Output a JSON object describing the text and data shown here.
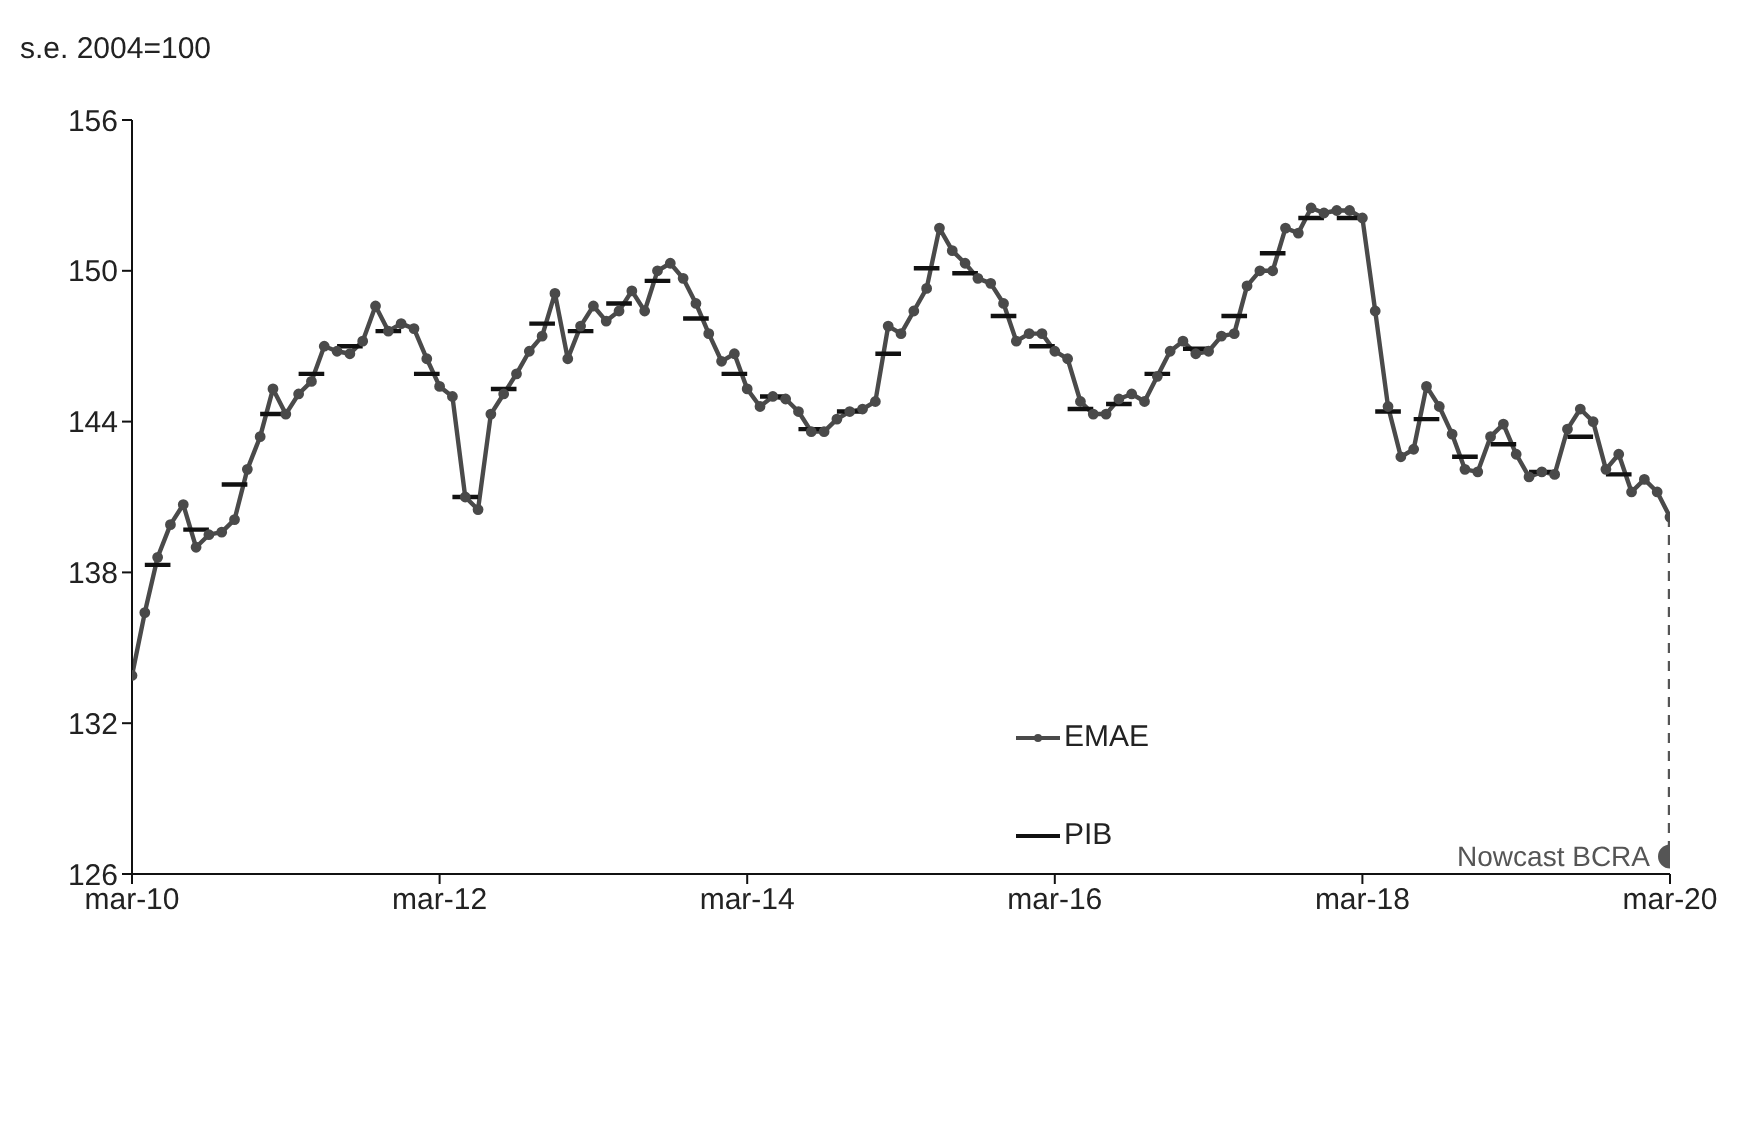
{
  "chart_data": {
    "type": "line",
    "ylabel": "s.e. 2004=100",
    "ylim": [
      126,
      156
    ],
    "yticks": [
      126,
      132,
      138,
      144,
      150,
      156
    ],
    "xlim": [
      "2010-03",
      "2020-03"
    ],
    "xticks": [
      {
        "value": "2010-03",
        "label": "mar-10"
      },
      {
        "value": "2012-03",
        "label": "mar-12"
      },
      {
        "value": "2014-03",
        "label": "mar-14"
      },
      {
        "value": "2016-03",
        "label": "mar-16"
      },
      {
        "value": "2018-03",
        "label": "mar-18"
      },
      {
        "value": "2020-03",
        "label": "mar-20"
      }
    ],
    "grid": false,
    "legend": "bottom",
    "x": [
      "2010-03",
      "2010-04",
      "2010-05",
      "2010-06",
      "2010-07",
      "2010-08",
      "2010-09",
      "2010-10",
      "2010-11",
      "2010-12",
      "2011-01",
      "2011-02",
      "2011-03",
      "2011-04",
      "2011-05",
      "2011-06",
      "2011-07",
      "2011-08",
      "2011-09",
      "2011-10",
      "2011-11",
      "2011-12",
      "2012-01",
      "2012-02",
      "2012-03",
      "2012-04",
      "2012-05",
      "2012-06",
      "2012-07",
      "2012-08",
      "2012-09",
      "2012-10",
      "2012-11",
      "2012-12",
      "2013-01",
      "2013-02",
      "2013-03",
      "2013-04",
      "2013-05",
      "2013-06",
      "2013-07",
      "2013-08",
      "2013-09",
      "2013-10",
      "2013-11",
      "2013-12",
      "2014-01",
      "2014-02",
      "2014-03",
      "2014-04",
      "2014-05",
      "2014-06",
      "2014-07",
      "2014-08",
      "2014-09",
      "2014-10",
      "2014-11",
      "2014-12",
      "2015-01",
      "2015-02",
      "2015-03",
      "2015-04",
      "2015-05",
      "2015-06",
      "2015-07",
      "2015-08",
      "2015-09",
      "2015-10",
      "2015-11",
      "2015-12",
      "2016-01",
      "2016-02",
      "2016-03",
      "2016-04",
      "2016-05",
      "2016-06",
      "2016-07",
      "2016-08",
      "2016-09",
      "2016-10",
      "2016-11",
      "2016-12",
      "2017-01",
      "2017-02",
      "2017-03",
      "2017-04",
      "2017-05",
      "2017-06",
      "2017-07",
      "2017-08",
      "2017-09",
      "2017-10",
      "2017-11",
      "2017-12",
      "2018-01",
      "2018-02",
      "2018-03",
      "2018-04",
      "2018-05",
      "2018-06",
      "2018-07",
      "2018-08",
      "2018-09",
      "2018-10",
      "2018-11",
      "2018-12",
      "2019-01",
      "2019-02",
      "2019-03",
      "2019-04",
      "2019-05",
      "2019-06",
      "2019-07",
      "2019-08",
      "2019-09",
      "2019-10",
      "2019-11",
      "2019-12",
      "2020-01",
      "2020-02",
      "2020-03"
    ],
    "series": [
      {
        "name": "EMAE",
        "color": "#4a4a4a",
        "marker": "circle",
        "line_style": "solid",
        "values": [
          133.9,
          136.4,
          138.6,
          139.9,
          140.7,
          139.0,
          139.5,
          139.6,
          140.1,
          142.1,
          143.4,
          145.3,
          144.3,
          145.1,
          145.6,
          147.0,
          146.8,
          146.7,
          147.2,
          148.6,
          147.6,
          147.9,
          147.7,
          146.5,
          145.4,
          145.0,
          141.0,
          140.5,
          144.3,
          145.1,
          145.9,
          146.8,
          147.4,
          149.1,
          146.5,
          147.8,
          148.6,
          148.0,
          148.4,
          149.2,
          148.4,
          150.0,
          150.3,
          149.7,
          148.7,
          147.5,
          146.4,
          146.7,
          145.3,
          144.6,
          145.0,
          144.9,
          144.4,
          143.6,
          143.6,
          144.1,
          144.4,
          144.5,
          144.8,
          147.8,
          147.5,
          148.4,
          149.3,
          151.7,
          150.8,
          150.3,
          149.7,
          149.5,
          148.7,
          147.2,
          147.5,
          147.5,
          146.8,
          146.5,
          144.8,
          144.3,
          144.3,
          144.9,
          145.1,
          144.8,
          145.8,
          146.8,
          147.2,
          146.7,
          146.8,
          147.4,
          147.5,
          149.4,
          150.0,
          150.0,
          151.7,
          151.5,
          152.5,
          152.3,
          152.4,
          152.4,
          152.1,
          148.4,
          144.6,
          142.6,
          142.9,
          145.4,
          144.6,
          143.5,
          142.1,
          142.0,
          143.4,
          143.9,
          142.7,
          141.8,
          142.0,
          141.9,
          143.7,
          144.5,
          144.0,
          142.1,
          142.7,
          141.2,
          141.7,
          141.2,
          140.2
        ]
      },
      {
        "name": "PIB",
        "color": "#111111",
        "marker": "none",
        "line_style": "solid",
        "x": [
          "2010-04",
          "2010-06",
          "2010-06-20",
          "2010-07",
          "2010-09",
          "2010-09-20",
          "2010-10",
          "2010-12",
          "2010-12-20",
          "2011-01",
          "2011-03",
          "2011-03-20",
          "2011-04",
          "2011-06",
          "2011-06-20",
          "2011-07",
          "2011-09",
          "2011-09-20",
          "2011-10",
          "2011-12",
          "2011-12-20",
          "2012-01",
          "2012-03",
          "2012-03-20",
          "2012-04",
          "2012-06",
          "2012-06-20",
          "2012-07",
          "2012-09",
          "2012-09-20",
          "2012-10",
          "2012-12",
          "2012-12-20",
          "2013-01",
          "2013-03",
          "2013-03-20",
          "2013-04",
          "2013-06",
          "2013-06-20",
          "2013-07",
          "2013-09",
          "2013-09-20",
          "2013-10",
          "2013-12",
          "2013-12-20",
          "2014-01",
          "2014-03",
          "2014-03-20",
          "2014-04",
          "2014-06",
          "2014-06-20",
          "2014-07",
          "2014-09",
          "2014-09-20",
          "2014-10",
          "2014-12",
          "2014-12-20",
          "2015-01",
          "2015-03",
          "2015-03-20",
          "2015-04",
          "2015-06",
          "2015-06-20",
          "2015-07",
          "2015-09",
          "2015-09-20",
          "2015-10",
          "2015-12",
          "2015-12-20",
          "2016-01",
          "2016-03",
          "2016-03-20",
          "2016-04",
          "2016-06",
          "2016-06-20",
          "2016-07",
          "2016-09",
          "2016-09-20",
          "2016-10",
          "2016-12",
          "2016-12-20",
          "2017-01",
          "2017-03",
          "2017-03-20",
          "2017-04",
          "2017-06",
          "2017-06-20",
          "2017-07",
          "2017-09",
          "2017-09-20",
          "2017-10",
          "2017-12",
          "2017-12-20",
          "2018-01",
          "2018-03",
          "2018-03-20",
          "2018-04",
          "2018-06",
          "2018-06-20",
          "2018-07",
          "2018-09",
          "2018-09-20",
          "2018-10",
          "2018-12",
          "2018-12-20",
          "2019-01",
          "2019-03",
          "2019-03-20",
          "2019-04",
          "2019-06",
          "2019-06-20",
          "2019-07",
          "2019-09",
          "2019-09-20",
          "2019-10",
          "2019-12"
        ],
        "values": [
          138.3,
          138.3,
          null,
          139.7,
          139.7,
          null,
          141.5,
          141.5,
          null,
          144.3,
          144.3,
          null,
          145.9,
          145.9,
          null,
          147.0,
          147.0,
          null,
          147.6,
          147.6,
          null,
          145.9,
          145.9,
          null,
          141.0,
          141.0,
          null,
          145.3,
          145.3,
          null,
          147.9,
          147.9,
          null,
          147.6,
          147.6,
          null,
          148.7,
          148.7,
          null,
          149.6,
          149.6,
          null,
          148.1,
          148.1,
          null,
          145.9,
          145.9,
          null,
          145.0,
          145.0,
          null,
          143.7,
          143.7,
          null,
          144.4,
          144.4,
          null,
          146.7,
          146.7,
          null,
          150.1,
          150.1,
          null,
          149.9,
          149.9,
          null,
          148.2,
          148.2,
          null,
          147.0,
          147.0,
          null,
          144.5,
          144.5,
          null,
          144.7,
          144.7,
          null,
          145.9,
          145.9,
          null,
          146.9,
          146.9,
          null,
          148.2,
          148.2,
          null,
          150.7,
          150.7,
          null,
          152.1,
          152.1,
          null,
          152.1,
          152.1,
          null,
          144.4,
          144.4,
          null,
          144.1,
          144.1,
          null,
          142.6,
          142.6,
          null,
          143.1,
          143.1,
          null,
          142.0,
          142.0,
          null,
          143.4,
          143.4,
          null,
          141.9,
          141.9
        ]
      },
      {
        "color": "#555555",
        "marker": "none",
        "line_style": "dashed",
        "x": [
          "2020-03",
          "2020-03"
        ],
        "values": [
          140.2,
          126.7
        ]
      },
      {
        "type": "scatter",
        "color": "#555555",
        "marker": "circle",
        "x": [
          "2020-03"
        ],
        "values": [
          126.7
        ]
      }
    ],
    "annotations": [
      {
        "text": "Nowcast BCRA",
        "x": "2020-03",
        "y": 126.7
      }
    ]
  }
}
